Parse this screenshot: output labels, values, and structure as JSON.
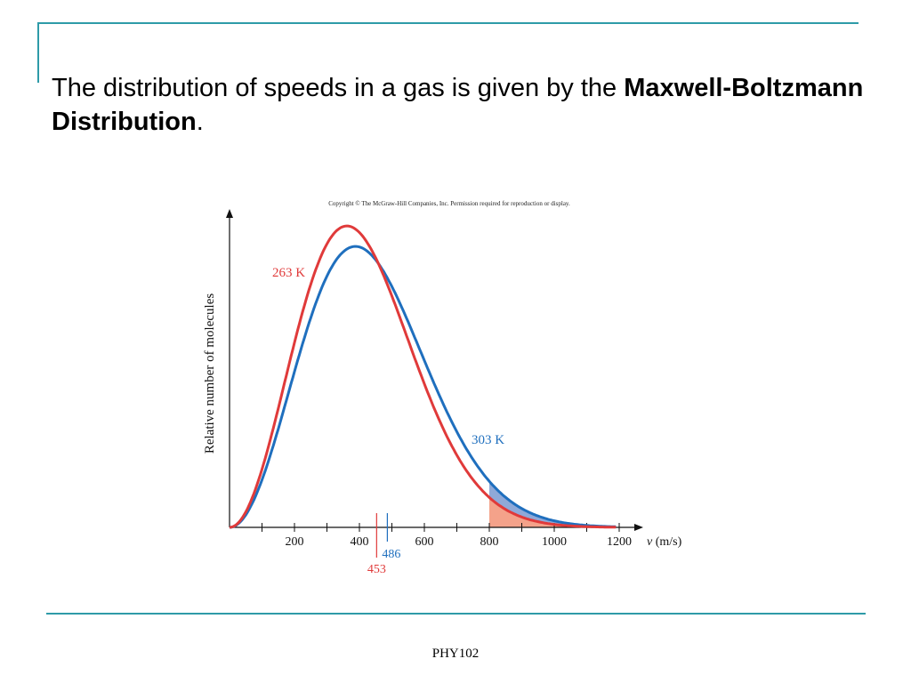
{
  "slide": {
    "title_prefix": "The distribution of speeds in a gas is given by the ",
    "title_bold": "Maxwell-Boltzmann Distribution",
    "title_suffix": ".",
    "footer": "PHY102"
  },
  "colors": {
    "accent": "#2e9ba8",
    "red_curve": "#e03a3a",
    "blue_curve": "#1f6fbe",
    "red_fill": "#f4a28a",
    "blue_fill": "#8fa9d8"
  },
  "chart_data": {
    "type": "line",
    "copyright": "Copyright © The McGraw-Hill Companies, Inc. Permission required for reproduction or display.",
    "xlabel_var": "v",
    "xlabel_unit": " (m/s)",
    "ylabel": "Relative number of molecules",
    "xlim": [
      0,
      1250
    ],
    "ylim": [
      0,
      1.1
    ],
    "x_ticks": [
      100,
      200,
      300,
      400,
      500,
      600,
      700,
      800,
      900,
      1000,
      1100,
      1200
    ],
    "x_tick_labels": [
      "200",
      "400",
      "600",
      "800",
      "1000",
      "1200"
    ],
    "x_tick_label_values": [
      200,
      400,
      600,
      800,
      1000,
      1200
    ],
    "grid": false,
    "shaded_from": 800,
    "series": [
      {
        "name": "263 K",
        "temperature": 263,
        "mean_speed": 453,
        "mean_label": "453",
        "color": "#e03a3a"
      },
      {
        "name": "303 K",
        "temperature": 303,
        "mean_speed": 486,
        "mean_label": "486",
        "color": "#1f6fbe"
      }
    ]
  }
}
